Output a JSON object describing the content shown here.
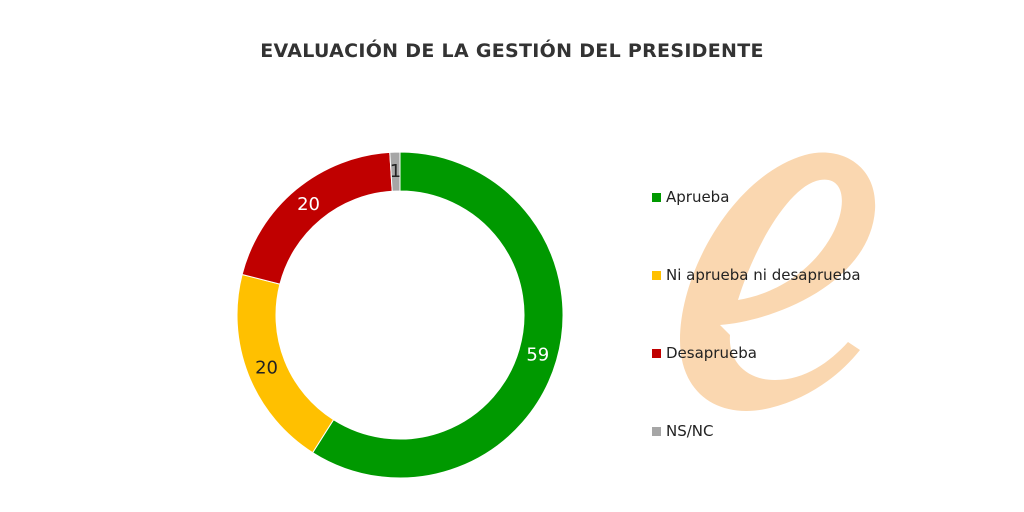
{
  "chart_data": {
    "type": "pie",
    "title": "EVALUACIÓN DE LA GESTIÓN DEL PRESIDENTE",
    "categories": [
      "Aprueba",
      "Ni aprueba ni desaprueba",
      "Desaprueba",
      "NS/NC"
    ],
    "values": [
      59,
      20,
      20,
      1
    ],
    "colors": [
      "#009900",
      "#FFC000",
      "#C00000",
      "#A6A6A6"
    ],
    "donut": true,
    "legend_position": "right"
  },
  "watermark": {
    "icon": "letter-e-logo",
    "color": "#FAD7B0"
  }
}
